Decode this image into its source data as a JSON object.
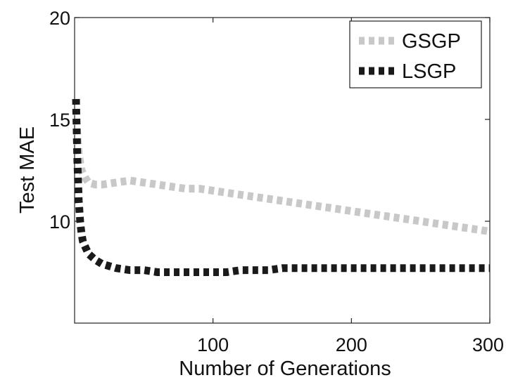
{
  "chart_data": {
    "type": "line",
    "title": "",
    "xlabel": "Number of Generations",
    "ylabel": "Test MAE",
    "xlim": [
      0,
      300
    ],
    "ylim": [
      5,
      20
    ],
    "xticks": [
      100,
      200,
      300
    ],
    "xtick_labels": [
      "100",
      "200",
      "300"
    ],
    "yticks": [
      10,
      15,
      20
    ],
    "ytick_labels": [
      "10",
      "15",
      "20"
    ],
    "grid": false,
    "legend_position": "top-right",
    "series": [
      {
        "name": "GSGP",
        "color": "#c8c8c8",
        "x": [
          1,
          2,
          3,
          5,
          8,
          10,
          15,
          20,
          30,
          40,
          50,
          60,
          70,
          80,
          90,
          100,
          110,
          120,
          130,
          140,
          150,
          160,
          170,
          180,
          190,
          200,
          210,
          220,
          230,
          240,
          250,
          260,
          270,
          280,
          290,
          300
        ],
        "y": [
          15.5,
          14.2,
          13.3,
          12.5,
          12.1,
          11.9,
          11.8,
          11.8,
          11.9,
          12.0,
          11.9,
          11.8,
          11.7,
          11.6,
          11.6,
          11.5,
          11.4,
          11.3,
          11.2,
          11.1,
          11.0,
          10.9,
          10.8,
          10.7,
          10.6,
          10.5,
          10.4,
          10.3,
          10.2,
          10.1,
          10.0,
          9.9,
          9.8,
          9.7,
          9.6,
          9.5
        ]
      },
      {
        "name": "LSGP",
        "color": "#1a1a1a",
        "x": [
          1,
          2,
          3,
          4,
          5,
          6,
          8,
          10,
          15,
          20,
          30,
          40,
          50,
          60,
          70,
          80,
          90,
          100,
          110,
          120,
          130,
          140,
          150,
          160,
          170,
          180,
          190,
          200,
          210,
          220,
          230,
          240,
          250,
          260,
          270,
          280,
          290,
          300
        ],
        "y": [
          16.0,
          13.0,
          11.0,
          10.0,
          9.4,
          9.0,
          8.7,
          8.4,
          8.1,
          7.9,
          7.7,
          7.6,
          7.6,
          7.5,
          7.5,
          7.5,
          7.5,
          7.5,
          7.5,
          7.6,
          7.6,
          7.6,
          7.7,
          7.7,
          7.7,
          7.7,
          7.7,
          7.7,
          7.7,
          7.7,
          7.7,
          7.7,
          7.7,
          7.7,
          7.7,
          7.7,
          7.7,
          7.7
        ]
      }
    ]
  }
}
